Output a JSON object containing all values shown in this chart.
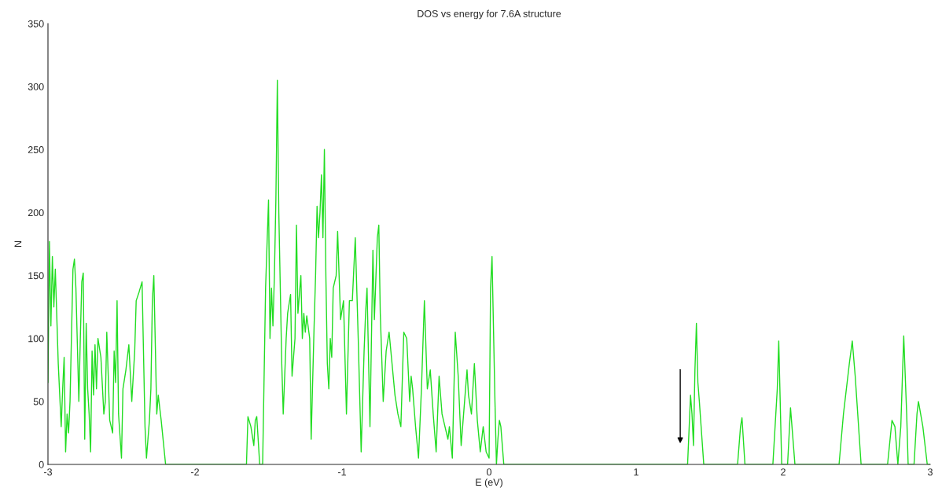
{
  "chart_data": {
    "type": "line",
    "title": "DOS vs energy for 7.6A structure",
    "xlabel": "E (eV)",
    "ylabel": "N",
    "xlim": [
      -3,
      3
    ],
    "ylim": [
      0,
      350
    ],
    "xticks": [
      -3,
      -2,
      -1,
      0,
      1,
      2,
      3
    ],
    "yticks": [
      0,
      50,
      100,
      150,
      200,
      250,
      300,
      350
    ],
    "grid": false,
    "marker": "none",
    "line_style": "solid",
    "series": [
      {
        "color": "#22dd22",
        "x": [
          -3.0,
          -2.99,
          -2.98,
          -2.97,
          -2.96,
          -2.95,
          -2.93,
          -2.91,
          -2.9,
          -2.89,
          -2.88,
          -2.87,
          -2.86,
          -2.85,
          -2.83,
          -2.82,
          -2.81,
          -2.79,
          -2.78,
          -2.77,
          -2.76,
          -2.75,
          -2.74,
          -2.73,
          -2.72,
          -2.71,
          -2.7,
          -2.69,
          -2.68,
          -2.67,
          -2.66,
          -2.64,
          -2.62,
          -2.61,
          -2.6,
          -2.58,
          -2.56,
          -2.55,
          -2.54,
          -2.53,
          -2.52,
          -2.5,
          -2.49,
          -2.47,
          -2.45,
          -2.43,
          -2.41,
          -2.4,
          -2.38,
          -2.36,
          -2.34,
          -2.33,
          -2.31,
          -2.3,
          -2.29,
          -2.28,
          -2.26,
          -2.25,
          -2.23,
          -2.2,
          -1.66,
          -1.65,
          -1.64,
          -1.62,
          -1.6,
          -1.59,
          -1.58,
          -1.56,
          -1.54,
          -1.52,
          -1.5,
          -1.49,
          -1.48,
          -1.47,
          -1.46,
          -1.45,
          -1.44,
          -1.43,
          -1.41,
          -1.4,
          -1.38,
          -1.37,
          -1.35,
          -1.34,
          -1.32,
          -1.31,
          -1.3,
          -1.28,
          -1.27,
          -1.26,
          -1.25,
          -1.24,
          -1.22,
          -1.21,
          -1.19,
          -1.18,
          -1.17,
          -1.16,
          -1.15,
          -1.14,
          -1.13,
          -1.12,
          -1.11,
          -1.1,
          -1.09,
          -1.08,
          -1.07,
          -1.06,
          -1.04,
          -1.03,
          -1.01,
          -0.99,
          -0.97,
          -0.95,
          -0.93,
          -0.91,
          -0.89,
          -0.87,
          -0.85,
          -0.84,
          -0.83,
          -0.81,
          -0.79,
          -0.78,
          -0.76,
          -0.75,
          -0.74,
          -0.72,
          -0.7,
          -0.68,
          -0.66,
          -0.64,
          -0.62,
          -0.6,
          -0.58,
          -0.56,
          -0.54,
          -0.53,
          -0.52,
          -0.5,
          -0.48,
          -0.46,
          -0.44,
          -0.42,
          -0.4,
          -0.38,
          -0.36,
          -0.34,
          -0.32,
          -0.3,
          -0.28,
          -0.27,
          -0.25,
          -0.23,
          -0.21,
          -0.19,
          -0.17,
          -0.15,
          -0.14,
          -0.12,
          -0.1,
          -0.08,
          -0.06,
          -0.04,
          -0.02,
          0.0,
          0.01,
          0.02,
          0.04,
          0.05,
          0.06,
          0.07,
          0.08,
          0.1,
          1.35,
          1.37,
          1.38,
          1.39,
          1.4,
          1.41,
          1.42,
          1.43,
          1.46,
          1.69,
          1.71,
          1.72,
          1.74,
          1.93,
          1.96,
          1.97,
          1.99,
          2.03,
          2.05,
          2.08,
          2.38,
          2.41,
          2.42,
          2.45,
          2.47,
          2.49,
          2.53,
          2.71,
          2.74,
          2.76,
          2.78,
          2.8,
          2.82,
          2.84,
          2.85,
          2.89,
          2.91,
          2.92,
          2.95,
          2.98,
          3.0
        ],
        "values": [
          65,
          177,
          110,
          165,
          125,
          155,
          80,
          30,
          60,
          85,
          10,
          40,
          25,
          50,
          155,
          163,
          140,
          50,
          100,
          145,
          152,
          20,
          112,
          60,
          40,
          10,
          90,
          55,
          95,
          60,
          100,
          85,
          40,
          50,
          105,
          35,
          25,
          90,
          65,
          130,
          40,
          5,
          60,
          75,
          95,
          50,
          90,
          130,
          137,
          145,
          30,
          5,
          35,
          60,
          130,
          150,
          40,
          55,
          35,
          0,
          0,
          0,
          38,
          30,
          15,
          35,
          38,
          0,
          0,
          140,
          210,
          100,
          140,
          110,
          150,
          210,
          305,
          200,
          80,
          40,
          100,
          120,
          135,
          70,
          100,
          190,
          120,
          150,
          100,
          120,
          105,
          118,
          100,
          20,
          110,
          150,
          205,
          180,
          200,
          230,
          180,
          250,
          150,
          80,
          60,
          100,
          85,
          140,
          150,
          185,
          115,
          130,
          40,
          130,
          130,
          180,
          100,
          10,
          90,
          120,
          140,
          30,
          170,
          115,
          180,
          190,
          120,
          50,
          90,
          105,
          80,
          55,
          40,
          30,
          105,
          100,
          50,
          70,
          60,
          30,
          5,
          60,
          130,
          60,
          75,
          40,
          10,
          70,
          40,
          30,
          20,
          30,
          5,
          105,
          70,
          15,
          45,
          75,
          55,
          40,
          80,
          35,
          10,
          30,
          10,
          5,
          140,
          165,
          50,
          0,
          20,
          35,
          30,
          0,
          0,
          55,
          40,
          15,
          75,
          112,
          65,
          50,
          0,
          0,
          30,
          37,
          0,
          0,
          60,
          98,
          0,
          0,
          45,
          0,
          0,
          40,
          50,
          80,
          98,
          70,
          0,
          0,
          35,
          30,
          0,
          30,
          102,
          40,
          0,
          0,
          40,
          50,
          30,
          0,
          0
        ]
      }
    ]
  }
}
